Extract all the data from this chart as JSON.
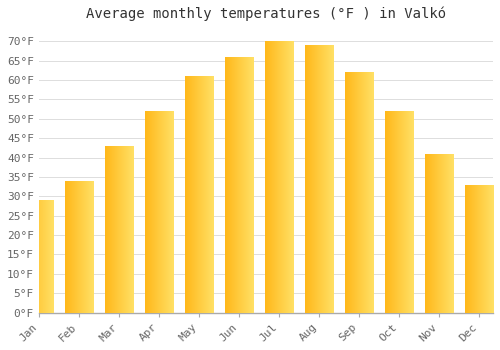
{
  "title": "Average monthly temperatures (°F ) in Valkó",
  "months": [
    "Jan",
    "Feb",
    "Mar",
    "Apr",
    "May",
    "Jun",
    "Jul",
    "Aug",
    "Sep",
    "Oct",
    "Nov",
    "Dec"
  ],
  "values": [
    29,
    34,
    43,
    52,
    61,
    66,
    70,
    69,
    62,
    52,
    41,
    33
  ],
  "bar_color_left": "#FFB300",
  "bar_color_right": "#FFD966",
  "ylim": [
    0,
    73
  ],
  "yticks": [
    0,
    5,
    10,
    15,
    20,
    25,
    30,
    35,
    40,
    45,
    50,
    55,
    60,
    65,
    70
  ],
  "ytick_labels": [
    "0°F",
    "5°F",
    "10°F",
    "15°F",
    "20°F",
    "25°F",
    "30°F",
    "35°F",
    "40°F",
    "45°F",
    "50°F",
    "55°F",
    "60°F",
    "65°F",
    "70°F"
  ],
  "bg_color": "#FFFFFF",
  "grid_color": "#DDDDDD",
  "title_fontsize": 10,
  "tick_fontsize": 8,
  "font_family": "monospace",
  "bar_width": 0.7
}
